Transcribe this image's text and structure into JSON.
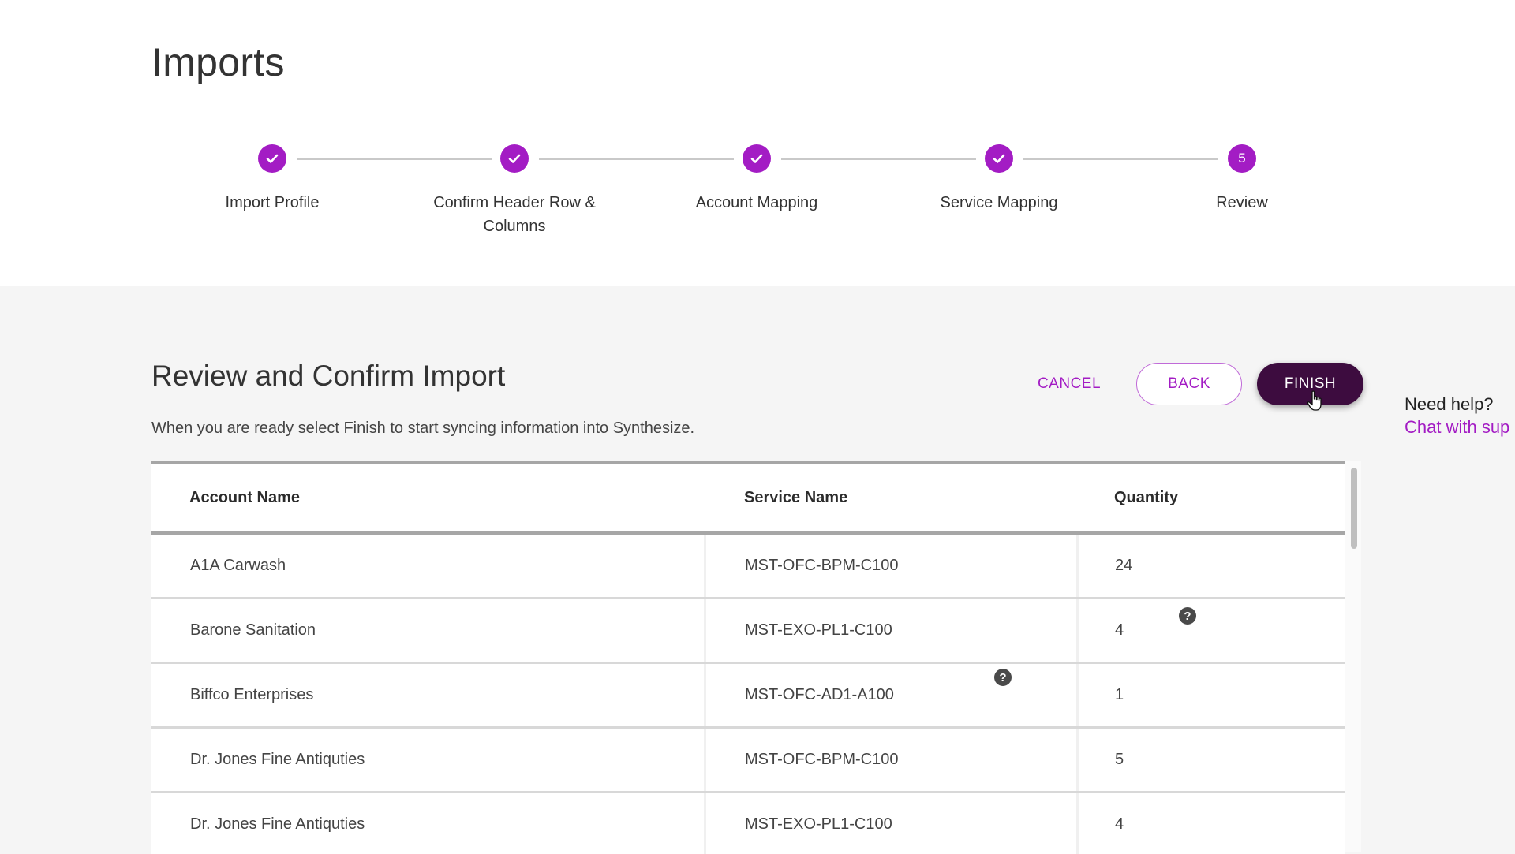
{
  "page": {
    "title": "Imports"
  },
  "stepper": {
    "steps": [
      {
        "label": "Import Profile",
        "status": "complete",
        "icon": "check-icon"
      },
      {
        "label": "Confirm Header Row & Columns",
        "status": "complete",
        "icon": "check-icon"
      },
      {
        "label": "Account Mapping",
        "status": "complete",
        "icon": "check-icon"
      },
      {
        "label": "Service Mapping",
        "status": "complete",
        "icon": "check-icon"
      },
      {
        "label": "Review",
        "status": "current",
        "number": "5"
      }
    ]
  },
  "review": {
    "title": "Review and Confirm Import",
    "description": "When you are ready select Finish to start syncing information into Synthesize."
  },
  "actions": {
    "cancel_label": "CANCEL",
    "back_label": "BACK",
    "finish_label": "FINISH"
  },
  "help": {
    "title": "Need help?",
    "link": "Chat with sup"
  },
  "table": {
    "columns": [
      "Account Name",
      "Service Name",
      "Quantity"
    ],
    "rows": [
      {
        "account": "A1A Carwash",
        "service": "MST-OFC-BPM-C100",
        "quantity": "24"
      },
      {
        "account": "Barone Sanitation",
        "service": "MST-EXO-PL1-C100",
        "quantity": "4"
      },
      {
        "account": "Biffco Enterprises",
        "service": "MST-OFC-AD1-A100",
        "quantity": "1"
      },
      {
        "account": "Dr. Jones Fine Antiquties",
        "service": "MST-OFC-BPM-C100",
        "quantity": "5"
      },
      {
        "account": "Dr. Jones Fine Antiquties",
        "service": "MST-EXO-PL1-C100",
        "quantity": "4"
      }
    ],
    "help_icon_glyph": "?"
  },
  "colors": {
    "accent": "#a31cc4",
    "finish_bg": "#3d0c3f",
    "panel_bg": "#f5f5f5"
  }
}
